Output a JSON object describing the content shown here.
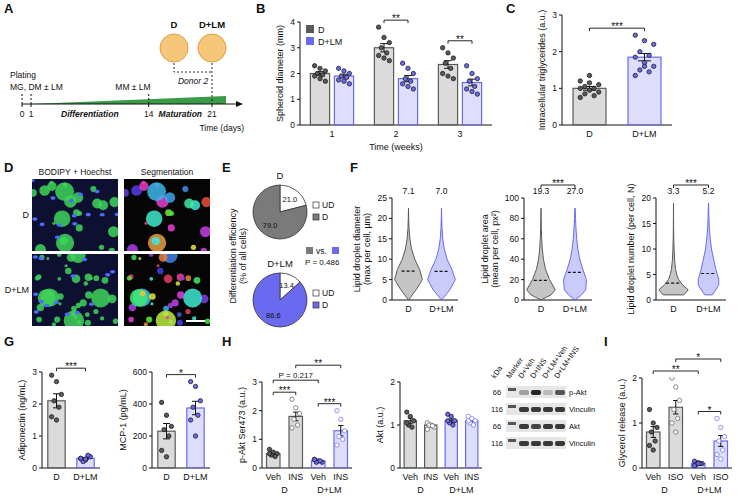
{
  "chart_data": [
    {
      "panel_label": "A",
      "type": "timeline",
      "x_label": "Time (days)",
      "xlim": [
        0,
        21
      ],
      "xticks": [
        0,
        1,
        14,
        21
      ],
      "events": [
        {
          "x": 0,
          "label": "Plating"
        },
        {
          "x": 1,
          "label": "MG, DM ± LM"
        },
        {
          "x": 14,
          "label": "MM ± LM"
        }
      ],
      "phases": [
        {
          "from": 1,
          "to": 14,
          "label": "Differentiation"
        },
        {
          "from": 14,
          "to": 21,
          "label": "Maturation"
        }
      ],
      "samples": [
        "D",
        "D+LM"
      ],
      "donor": "Donor 2"
    },
    {
      "panel_label": "B",
      "type": "bar",
      "y_label": "Spheroid diameter (mm)",
      "x_label": "Time (weeks)",
      "categories": [
        "1",
        "2",
        "3"
      ],
      "ylim": [
        0,
        4
      ],
      "yticks": [
        0,
        1,
        2,
        3,
        4
      ],
      "legend": "upper-left",
      "series": [
        {
          "name": "D",
          "color": "#5a5a5a",
          "values": [
            2.0,
            3.0,
            2.35
          ],
          "errors": [
            0.07,
            0.16,
            0.15
          ],
          "points": [
            [
              2.3,
              2.2,
              2.1,
              2.0,
              1.95,
              1.9,
              1.8,
              1.7
            ],
            [
              3.8,
              3.4,
              3.2,
              3.0,
              2.8,
              2.7,
              2.6,
              2.5
            ],
            [
              3.0,
              2.8,
              2.6,
              2.4,
              2.2,
              2.0,
              1.9,
              1.8
            ]
          ]
        },
        {
          "name": "D+LM",
          "color": "#6a6af0",
          "values": [
            1.9,
            1.8,
            1.65
          ],
          "errors": [
            0.07,
            0.12,
            0.13
          ],
          "points": [
            [
              2.2,
              2.1,
              2.0,
              1.9,
              1.85,
              1.75,
              1.7,
              1.6
            ],
            [
              2.4,
              2.2,
              2.0,
              1.8,
              1.7,
              1.6,
              1.5,
              1.4
            ],
            [
              2.3,
              2.0,
              1.8,
              1.7,
              1.5,
              1.4,
              1.3,
              1.2
            ]
          ]
        }
      ],
      "brackets": [
        {
          "label": "**",
          "pair": [
            2,
            3
          ]
        },
        {
          "label": "**",
          "pair": [
            4,
            5
          ]
        }
      ]
    },
    {
      "panel_label": "C",
      "type": "bar",
      "y_label": "Intracellular triglycerides (a.u.)",
      "categories": [
        "D",
        "D+LM"
      ],
      "colors": [
        "#5a5a5a",
        "#6a6af0"
      ],
      "values": [
        1.0,
        1.85
      ],
      "errors": [
        0.05,
        0.1
      ],
      "points": [
        [
          1.2,
          1.15,
          1.1,
          1.05,
          1.0,
          1.0,
          0.95,
          0.9,
          0.85,
          0.8,
          0.75,
          1.35
        ],
        [
          2.45,
          2.3,
          2.2,
          2.0,
          1.9,
          1.85,
          1.7,
          1.6,
          1.5,
          1.45,
          1.35,
          1.6
        ]
      ],
      "ylim": [
        0,
        3
      ],
      "yticks": [
        0,
        1,
        2,
        3
      ],
      "brackets": [
        {
          "label": "***",
          "pair": [
            0,
            1
          ]
        }
      ]
    },
    {
      "panel_label": "D",
      "type": "image",
      "columns": [
        "BODIPY + Hoechst",
        "Segmentation"
      ],
      "rows": [
        "D",
        "D+LM"
      ]
    },
    {
      "panel_label": "E",
      "type": "pie",
      "title": "D",
      "y_label": "Differentiation efficiency (% of all cells)",
      "categories": [
        "UD",
        "D"
      ],
      "values": [
        21.0,
        79.0
      ],
      "value_labels": [
        "21.0",
        "79.0"
      ],
      "colors": [
        "#ffffff",
        "#7a7a7a"
      ],
      "data_labels": true,
      "legend": "right",
      "annotations": [
        "vs.",
        "P = 0.486"
      ]
    },
    {
      "type": "pie",
      "title": "D+LM",
      "categories": [
        "UD",
        "D"
      ],
      "values": [
        13.4,
        86.6
      ],
      "value_labels": [
        "13.4",
        "86.6"
      ],
      "colors": [
        "#ffffff",
        "#6a6af0"
      ],
      "data_labels": true,
      "legend": "right"
    },
    {
      "panel_label": "F",
      "type": "violin",
      "y_label": "Lipid droplet diameter (max per cell, µm)",
      "categories": [
        "D",
        "D+LM"
      ],
      "colors": [
        "#5a5a5a",
        "#6a6af0"
      ],
      "values": [
        7.1,
        7.0
      ],
      "value_labels": [
        "7.1",
        "7.0"
      ],
      "data_labels": true,
      "levels": [
        0,
        2.5,
        5,
        7.5,
        10,
        12.5,
        15,
        17.5,
        20,
        22.5
      ],
      "density": [
        [
          0,
          0.55,
          1,
          0.8,
          0.45,
          0.22,
          0.1,
          0.04,
          0.015,
          0
        ],
        [
          0,
          0.6,
          1,
          0.75,
          0.4,
          0.2,
          0.09,
          0.04,
          0.015,
          0
        ]
      ],
      "ylim": [
        0,
        25
      ],
      "yticks": [
        0,
        5,
        10,
        15,
        20,
        25
      ]
    },
    {
      "type": "violin",
      "y_label": "Lipid droplet area (mean per cell, px²)",
      "categories": [
        "D",
        "D+LM"
      ],
      "colors": [
        "#5a5a5a",
        "#6a6af0"
      ],
      "values": [
        19.3,
        27.0
      ],
      "value_labels": [
        "19.3",
        "27.0"
      ],
      "data_labels": true,
      "levels": [
        0,
        5,
        10,
        20,
        30,
        40,
        50,
        60,
        70,
        80,
        90
      ],
      "density": [
        [
          0,
          0.7,
          1,
          0.6,
          0.32,
          0.17,
          0.09,
          0.05,
          0.025,
          0.01,
          0
        ],
        [
          0,
          0.45,
          0.75,
          0.8,
          0.55,
          0.33,
          0.2,
          0.12,
          0.07,
          0.035,
          0.012
        ]
      ],
      "ylim": [
        0,
        100
      ],
      "yticks": [
        0,
        20,
        40,
        60,
        80,
        100
      ],
      "brackets": [
        {
          "label": "***",
          "pair": [
            0,
            1
          ]
        }
      ]
    },
    {
      "type": "violin",
      "y_label": "Lipid droplet number (per cell, N)",
      "categories": [
        "D",
        "D+LM"
      ],
      "colors": [
        "#5a5a5a",
        "#6a6af0"
      ],
      "values": [
        3.3,
        5.2
      ],
      "value_labels": [
        "3.3",
        "5.2"
      ],
      "data_labels": true,
      "levels": [
        1,
        2,
        3,
        4,
        5,
        6,
        8,
        10,
        12,
        14,
        16,
        18,
        19
      ],
      "density": [
        [
          0.7,
          1,
          0.6,
          0.35,
          0.22,
          0.14,
          0.07,
          0.04,
          0.02,
          0.01,
          0.005,
          0.003,
          0
        ],
        [
          0.25,
          0.5,
          0.7,
          0.7,
          0.6,
          0.5,
          0.35,
          0.2,
          0.12,
          0.06,
          0.03,
          0.012,
          0
        ]
      ],
      "ylim": [
        0,
        20
      ],
      "yticks": [
        0,
        5,
        10,
        15,
        20
      ],
      "brackets": [
        {
          "label": "***",
          "pair": [
            0,
            1
          ]
        }
      ]
    },
    {
      "panel_label": "G",
      "type": "bar",
      "y_label": "Adiponectin (ng/mL)",
      "categories": [
        "D",
        "D+LM"
      ],
      "colors": [
        "#5a5a5a",
        "#6a6af0"
      ],
      "values": [
        2.1,
        0.3
      ],
      "errors": [
        0.22,
        0.03
      ],
      "points": [
        [
          2.9,
          2.7,
          2.3,
          2.1,
          1.9,
          1.6,
          1.5
        ],
        [
          0.3,
          0.25,
          0.35,
          0.2,
          0.4,
          0.3,
          0.28
        ]
      ],
      "ylim": [
        0,
        3
      ],
      "yticks": [
        0,
        1,
        2,
        3
      ],
      "brackets": [
        {
          "label": "***",
          "pair": [
            0,
            1
          ]
        }
      ]
    },
    {
      "type": "bar",
      "y_label": "MCP-1 (pg/mL)",
      "categories": [
        "D",
        "D+LM"
      ],
      "colors": [
        "#5a5a5a",
        "#6a6af0"
      ],
      "values": [
        230,
        375
      ],
      "errors": [
        48,
        42
      ],
      "points": [
        [
          410,
          330,
          260,
          240,
          200,
          110,
          70
        ],
        [
          540,
          510,
          420,
          380,
          330,
          300,
          200
        ]
      ],
      "ylim": [
        0,
        600
      ],
      "yticks": [
        0,
        200,
        400,
        600
      ],
      "brackets": [
        {
          "label": "*",
          "pair": [
            0,
            1
          ]
        }
      ]
    },
    {
      "panel_label": "H",
      "type": "bar",
      "y_label": "p-Akt Ser473 (a.u.)",
      "categories": [
        "Veh",
        "INS",
        "Veh",
        "INS"
      ],
      "groups": [
        "D",
        "D+LM"
      ],
      "colors": [
        "#5a5a5a",
        "#5a5a5a",
        "#6a6af0",
        "#6a6af0"
      ],
      "values": [
        0.5,
        1.8,
        0.25,
        1.3
      ],
      "errors": [
        0.05,
        0.15,
        0.02,
        0.18
      ],
      "points": [
        [
          0.65,
          0.55,
          0.5,
          0.45,
          0.4,
          0.5
        ],
        [
          2.4,
          2.1,
          1.9,
          1.7,
          1.5,
          1.4
        ],
        [
          0.3,
          0.25,
          0.2,
          0.2,
          0.25,
          0.3
        ],
        [
          2.0,
          1.7,
          1.3,
          1.1,
          1.0,
          0.8
        ]
      ],
      "ylim": [
        0,
        3
      ],
      "yticks": [
        0,
        1,
        2,
        3
      ],
      "brackets": [
        {
          "label": "***",
          "pair": [
            0,
            1
          ]
        },
        {
          "label": "***",
          "pair": [
            2,
            3
          ]
        },
        {
          "label": "P = 0.217",
          "pair": [
            0,
            2
          ]
        },
        {
          "label": "**",
          "pair": [
            1,
            3
          ]
        }
      ]
    },
    {
      "type": "bar",
      "y_label": "Akt (a.u.)",
      "categories": [
        "Veh",
        "INS",
        "Veh",
        "INS"
      ],
      "groups": [
        "D",
        "D+LM"
      ],
      "colors": [
        "#5a5a5a",
        "#5a5a5a",
        "#6a6af0",
        "#6a6af0"
      ],
      "values": [
        1.1,
        1.0,
        1.1,
        1.1
      ],
      "errors": [
        0.06,
        0.03,
        0.04,
        0.03
      ],
      "points": [
        [
          1.3,
          1.2,
          1.1,
          1.0,
          0.95,
          1.05
        ],
        [
          1.05,
          1.0,
          0.95,
          1.0,
          0.98,
          0.9
        ],
        [
          1.25,
          1.2,
          1.1,
          1.05,
          1.0,
          1.1
        ],
        [
          1.2,
          1.15,
          1.1,
          1.05,
          1.0,
          1.1
        ]
      ],
      "ylim": [
        0,
        2
      ],
      "yticks": [
        0,
        1,
        2
      ]
    },
    {
      "type": "blot",
      "header": [
        "kDa",
        "Marker",
        "D+Veh",
        "D+INS",
        "D+LM+Veh",
        "D+LM+INS"
      ],
      "rows": [
        {
          "label": "p-Akt",
          "kda": 66
        },
        {
          "label": "Vinculin",
          "kda": 116
        },
        {
          "label": "Akt",
          "kda": 66
        },
        {
          "label": "Vinculin",
          "kda": 116
        }
      ]
    },
    {
      "panel_label": "I",
      "type": "bar",
      "y_label": "Glycerol release (a.u.)",
      "categories": [
        "Veh",
        "ISO",
        "Veh",
        "ISO"
      ],
      "groups": [
        "D",
        "D+LM"
      ],
      "colors": [
        "#5a5a5a",
        "#5a5a5a",
        "#6a6af0",
        "#6a6af0"
      ],
      "values": [
        0.8,
        1.35,
        0.1,
        0.6
      ],
      "errors": [
        0.12,
        0.15,
        0.02,
        0.12
      ],
      "points": [
        [
          1.3,
          1.0,
          0.9,
          0.8,
          0.6,
          0.5,
          0.4
        ],
        [
          2.0,
          1.8,
          1.5,
          1.3,
          1.1,
          1.0,
          0.8
        ],
        [
          0.15,
          0.12,
          0.1,
          0.08,
          0.1,
          0.05,
          0.1
        ],
        [
          1.1,
          0.9,
          0.7,
          0.6,
          0.4,
          0.3,
          0.2
        ]
      ],
      "ylim": [
        0,
        2
      ],
      "yticks": [
        0,
        1,
        2
      ],
      "brackets": [
        {
          "label": "*",
          "pair": [
            2,
            3
          ]
        },
        {
          "label": "**",
          "pair": [
            0,
            2
          ]
        },
        {
          "label": "*",
          "pair": [
            1,
            3
          ]
        }
      ]
    }
  ]
}
